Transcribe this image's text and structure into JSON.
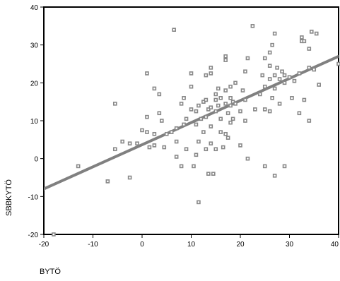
{
  "chart_data": {
    "type": "scatter",
    "xlabel": "BYTÖ",
    "ylabel": "SBBKYTÖ",
    "xlim": [
      -20,
      40
    ],
    "ylim": [
      -20,
      40
    ],
    "xticks": [
      -20,
      -10,
      0,
      10,
      20,
      30,
      40
    ],
    "yticks": [
      -20,
      -10,
      0,
      10,
      20,
      30,
      40
    ],
    "x_tick_labels": [
      "-20",
      "-10",
      "0",
      "10",
      "20",
      "30",
      "40"
    ],
    "y_tick_labels": [
      "-20",
      "-10",
      "0",
      "10",
      "20",
      "30",
      "40"
    ],
    "grid": false,
    "colors": {
      "points": "#888888",
      "fit_line": "#808080",
      "frame": "#000000"
    },
    "fit_line": {
      "x": [
        -20,
        40
      ],
      "y": [
        -8,
        27
      ]
    },
    "series": [
      {
        "points": [
          [
            -18,
            -20
          ],
          [
            -13,
            -2
          ],
          [
            -7,
            -6
          ],
          [
            -5.5,
            14.5
          ],
          [
            -5.5,
            2.5
          ],
          [
            -4,
            4.5
          ],
          [
            -2.5,
            4
          ],
          [
            -2.5,
            -5
          ],
          [
            -1,
            4
          ],
          [
            0,
            7.5
          ],
          [
            1,
            11
          ],
          [
            1,
            22.5
          ],
          [
            1,
            7
          ],
          [
            1.5,
            3
          ],
          [
            2.5,
            6.5
          ],
          [
            2.5,
            18.5
          ],
          [
            2.5,
            3.5
          ],
          [
            3.5,
            17
          ],
          [
            3.5,
            12
          ],
          [
            4,
            10
          ],
          [
            4.5,
            3
          ],
          [
            5,
            6.5
          ],
          [
            6,
            7
          ],
          [
            6.5,
            34
          ],
          [
            7,
            0.5
          ],
          [
            7,
            4.5
          ],
          [
            7,
            8
          ],
          [
            8,
            -2
          ],
          [
            8,
            14.5
          ],
          [
            8.5,
            16
          ],
          [
            8.5,
            9
          ],
          [
            9,
            2.5
          ],
          [
            9,
            10.5
          ],
          [
            10,
            22.5
          ],
          [
            10,
            19
          ],
          [
            10,
            13
          ],
          [
            10.5,
            -2
          ],
          [
            11,
            12.5
          ],
          [
            11,
            9
          ],
          [
            11,
            1
          ],
          [
            11.5,
            -11.5
          ],
          [
            11.5,
            14
          ],
          [
            11.5,
            4.5
          ],
          [
            12,
            10.5
          ],
          [
            12.5,
            15
          ],
          [
            12.5,
            7
          ],
          [
            13,
            22
          ],
          [
            13,
            15.5
          ],
          [
            13,
            11
          ],
          [
            13,
            2.5
          ],
          [
            13.5,
            13
          ],
          [
            13.5,
            -4
          ],
          [
            14,
            24
          ],
          [
            14,
            22.5
          ],
          [
            14,
            13.5
          ],
          [
            14,
            8.5
          ],
          [
            14,
            4
          ],
          [
            14.5,
            -4
          ],
          [
            15,
            17
          ],
          [
            15,
            15.5
          ],
          [
            15,
            12.5
          ],
          [
            15,
            2.5
          ],
          [
            15.5,
            18.5
          ],
          [
            15.5,
            14
          ],
          [
            16,
            16
          ],
          [
            16,
            10.5
          ],
          [
            16,
            7
          ],
          [
            16.5,
            3
          ],
          [
            17,
            27
          ],
          [
            17,
            26
          ],
          [
            17,
            18
          ],
          [
            17,
            14.5
          ],
          [
            17,
            6.5
          ],
          [
            17.5,
            12
          ],
          [
            17.5,
            5.5
          ],
          [
            18,
            19
          ],
          [
            18,
            16
          ],
          [
            18,
            14
          ],
          [
            18,
            9.5
          ],
          [
            18.5,
            15
          ],
          [
            18.5,
            10.5
          ],
          [
            19,
            20
          ],
          [
            19,
            14.5
          ],
          [
            20,
            12.5
          ],
          [
            20,
            3.5
          ],
          [
            20.5,
            18
          ],
          [
            21,
            23
          ],
          [
            21,
            15.5
          ],
          [
            21,
            10
          ],
          [
            21.5,
            0
          ],
          [
            21.5,
            26.5
          ],
          [
            22.5,
            35
          ],
          [
            23,
            13
          ],
          [
            24,
            17
          ],
          [
            24.5,
            22
          ],
          [
            25,
            19
          ],
          [
            25,
            -2
          ],
          [
            25,
            13
          ],
          [
            25,
            26.5
          ],
          [
            26,
            28
          ],
          [
            26,
            24.5
          ],
          [
            26,
            21
          ],
          [
            26,
            12.5
          ],
          [
            26.5,
            30
          ],
          [
            26.5,
            16
          ],
          [
            27,
            33
          ],
          [
            27,
            22
          ],
          [
            27,
            18.5
          ],
          [
            27,
            -4.5
          ],
          [
            27.5,
            24
          ],
          [
            28,
            21
          ],
          [
            28,
            14.5
          ],
          [
            28.5,
            23
          ],
          [
            29,
            22
          ],
          [
            29,
            -2
          ],
          [
            29,
            20
          ],
          [
            30,
            21.5
          ],
          [
            30.5,
            16
          ],
          [
            31,
            20.5
          ],
          [
            32,
            12
          ],
          [
            32,
            22.5
          ],
          [
            32.5,
            32
          ],
          [
            32.5,
            31
          ],
          [
            33,
            31
          ],
          [
            33,
            15.5
          ],
          [
            34,
            29
          ],
          [
            34,
            24
          ],
          [
            34,
            10
          ],
          [
            34.5,
            33.5
          ],
          [
            35,
            23.5
          ],
          [
            35.5,
            33
          ],
          [
            36,
            19.5
          ],
          [
            40,
            25
          ]
        ]
      }
    ]
  }
}
